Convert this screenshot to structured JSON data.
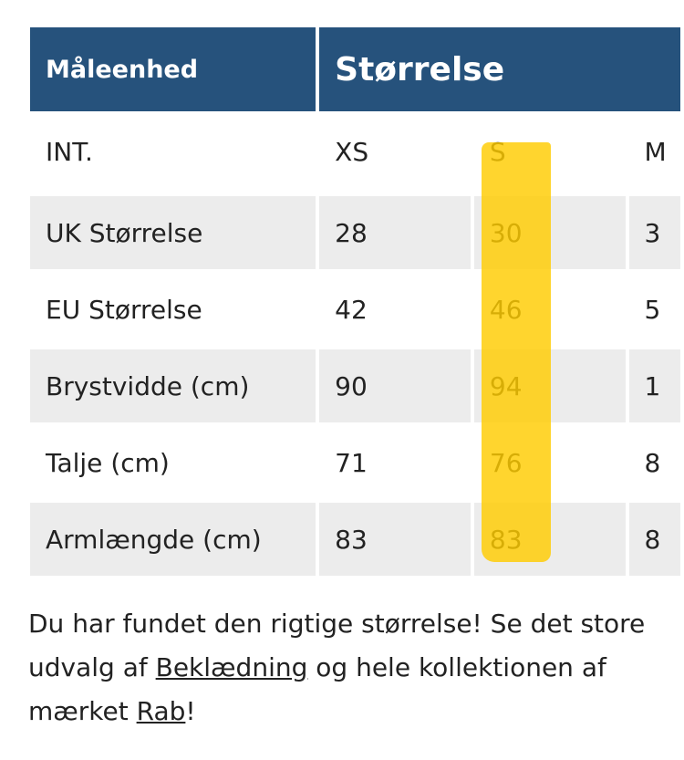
{
  "table": {
    "headers": [
      "Måleenhed",
      "Størrelse"
    ],
    "rows": [
      {
        "label": "INT.",
        "values": [
          "XS",
          "S",
          "M"
        ]
      },
      {
        "label": "UK Størrelse",
        "values": [
          "28",
          "30",
          "3"
        ]
      },
      {
        "label": "EU Størrelse",
        "values": [
          "42",
          "46",
          "5"
        ]
      },
      {
        "label": "Brystvidde (cm)",
        "values": [
          "90",
          "94",
          "1"
        ]
      },
      {
        "label": "Talje (cm)",
        "values": [
          "71",
          "76",
          "8"
        ]
      },
      {
        "label": "Armlængde (cm)",
        "values": [
          "83",
          "83",
          "8"
        ]
      }
    ],
    "header_color": "#26527c",
    "stripe_color": "#ececec",
    "highlight_color": "#ffcc00",
    "highlighted_column": "S"
  },
  "message": {
    "text1": "Du har fundet den rigtige størrelse! Se det store udvalg af ",
    "link1": "Beklædning",
    "text2": " og hele kollektionen af mærket ",
    "link2": "Rab",
    "text3": "!"
  }
}
